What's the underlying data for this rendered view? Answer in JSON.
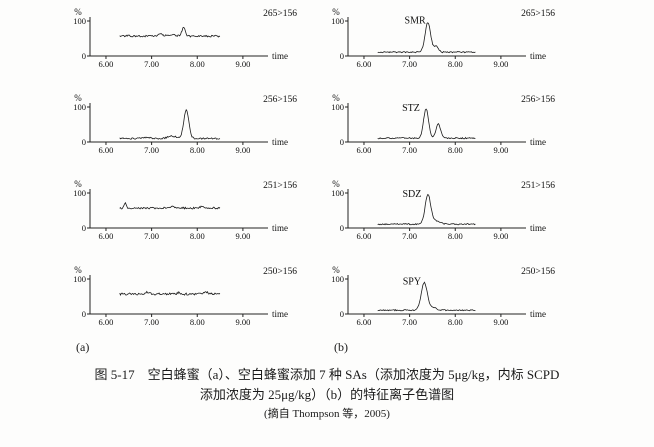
{
  "figure": {
    "column_labels": [
      "(a)",
      "(b)"
    ],
    "caption_line1": "图 5-17　空白蜂蜜（a）、空白蜂蜜添加 7 种 SAs（添加浓度为 5μg/kg，内标 SCPD",
    "caption_line2": "添加浓度为 25μg/kg）（b）的特征离子色谱图",
    "caption_line3": "(摘自 Thompson 等，2005)"
  },
  "chart_data": [
    {
      "id": "a1",
      "column": "a",
      "type": "line",
      "transition": "265>156",
      "peak_label": "",
      "ylabel": "%",
      "yticks": [
        100,
        0
      ],
      "xticks": [
        "6.00",
        "7.00",
        "8.00",
        "9.00"
      ],
      "xlabel": "time",
      "xrange": [
        5.65,
        9.55
      ],
      "trace_range": [
        6.3,
        8.5
      ],
      "baseline": 57,
      "noise": 2.6,
      "seed": 11,
      "peaks": [
        {
          "t": 7.7,
          "h": 26,
          "w": 0.035
        },
        {
          "t": 7.2,
          "h": 5,
          "w": 0.06
        },
        {
          "t": 7.48,
          "h": 4,
          "w": 0.05
        }
      ]
    },
    {
      "id": "a2",
      "column": "a",
      "type": "line",
      "transition": "256>156",
      "peak_label": "",
      "ylabel": "%",
      "yticks": [
        100,
        0
      ],
      "xticks": [
        "6.00",
        "7.00",
        "8.00",
        "9.00"
      ],
      "xlabel": "time",
      "xrange": [
        5.65,
        9.55
      ],
      "trace_range": [
        6.3,
        8.5
      ],
      "baseline": 10,
      "noise": 2.2,
      "seed": 22,
      "peaks": [
        {
          "t": 7.76,
          "h": 81,
          "w": 0.055
        },
        {
          "t": 7.45,
          "h": 7,
          "w": 0.09
        },
        {
          "t": 6.9,
          "h": 3,
          "w": 0.08
        }
      ]
    },
    {
      "id": "a3",
      "column": "a",
      "type": "line",
      "transition": "251>156",
      "peak_label": "",
      "ylabel": "%",
      "yticks": [
        100,
        0
      ],
      "xticks": [
        "6.00",
        "7.00",
        "8.00",
        "9.00"
      ],
      "xlabel": "time",
      "xrange": [
        5.65,
        9.55
      ],
      "trace_range": [
        6.3,
        8.5
      ],
      "baseline": 57,
      "noise": 2.6,
      "seed": 33,
      "peaks": [
        {
          "t": 6.42,
          "h": 15,
          "w": 0.02
        },
        {
          "t": 7.45,
          "h": 5,
          "w": 0.05
        },
        {
          "t": 8.1,
          "h": 4,
          "w": 0.05
        }
      ]
    },
    {
      "id": "a4",
      "column": "a",
      "type": "line",
      "transition": "250>156",
      "peak_label": "",
      "ylabel": "%",
      "yticks": [
        100,
        0
      ],
      "xticks": [
        "6.00",
        "7.00",
        "8.00",
        "9.00"
      ],
      "xlabel": "time",
      "xrange": [
        5.65,
        9.55
      ],
      "trace_range": [
        6.3,
        8.5
      ],
      "baseline": 57,
      "noise": 3.0,
      "seed": 44,
      "peaks": [
        {
          "t": 6.9,
          "h": 5,
          "w": 0.05
        },
        {
          "t": 7.6,
          "h": 4,
          "w": 0.04
        },
        {
          "t": 8.2,
          "h": 4,
          "w": 0.05
        }
      ]
    },
    {
      "id": "b1",
      "column": "b",
      "type": "line",
      "transition": "265>156",
      "peak_label": "SMR",
      "peak_label_pos": {
        "t": 7.12,
        "v": 93
      },
      "ylabel": "%",
      "yticks": [
        100,
        0
      ],
      "xticks": [
        "6.00",
        "7.00",
        "8.00",
        "9.00"
      ],
      "xlabel": "time",
      "xrange": [
        5.65,
        9.55
      ],
      "trace_range": [
        6.3,
        8.45
      ],
      "baseline": 11,
      "noise": 1.8,
      "seed": 55,
      "peaks": [
        {
          "t": 7.4,
          "h": 85,
          "w": 0.06
        },
        {
          "t": 7.58,
          "h": 16,
          "w": 0.05
        }
      ]
    },
    {
      "id": "b2",
      "column": "b",
      "type": "line",
      "transition": "256>156",
      "peak_label": "STZ",
      "peak_label_pos": {
        "t": 7.03,
        "v": 88
      },
      "ylabel": "%",
      "yticks": [
        100,
        0
      ],
      "xticks": [
        "6.00",
        "7.00",
        "8.00",
        "9.00"
      ],
      "xlabel": "time",
      "xrange": [
        5.65,
        9.55
      ],
      "trace_range": [
        6.3,
        8.45
      ],
      "baseline": 11,
      "noise": 1.8,
      "seed": 66,
      "peaks": [
        {
          "t": 7.36,
          "h": 83,
          "w": 0.055
        },
        {
          "t": 7.63,
          "h": 40,
          "w": 0.05
        }
      ]
    },
    {
      "id": "b3",
      "column": "b",
      "type": "line",
      "transition": "251>156",
      "peak_label": "SDZ",
      "peak_label_pos": {
        "t": 7.05,
        "v": 88
      },
      "ylabel": "%",
      "yticks": [
        100,
        0
      ],
      "xticks": [
        "6.00",
        "7.00",
        "8.00",
        "9.00"
      ],
      "xlabel": "time",
      "xrange": [
        5.65,
        9.55
      ],
      "trace_range": [
        6.3,
        8.45
      ],
      "baseline": 11,
      "noise": 1.8,
      "seed": 77,
      "peaks": [
        {
          "t": 7.4,
          "h": 84,
          "w": 0.06
        },
        {
          "t": 7.56,
          "h": 10,
          "w": 0.09
        }
      ]
    },
    {
      "id": "b4",
      "column": "b",
      "type": "line",
      "transition": "250>156",
      "peak_label": "SPY",
      "peak_label_pos": {
        "t": 7.05,
        "v": 85
      },
      "ylabel": "%",
      "yticks": [
        100,
        0
      ],
      "xticks": [
        "6.00",
        "7.00",
        "8.00",
        "9.00"
      ],
      "xlabel": "time",
      "xrange": [
        5.65,
        9.55
      ],
      "trace_range": [
        6.3,
        8.45
      ],
      "baseline": 11,
      "noise": 1.8,
      "seed": 88,
      "peaks": [
        {
          "t": 7.32,
          "h": 79,
          "w": 0.065
        },
        {
          "t": 7.5,
          "h": 8,
          "w": 0.08
        }
      ]
    }
  ],
  "style": {
    "trace_color": "#1a1a1a",
    "axis_color": "#222222"
  }
}
